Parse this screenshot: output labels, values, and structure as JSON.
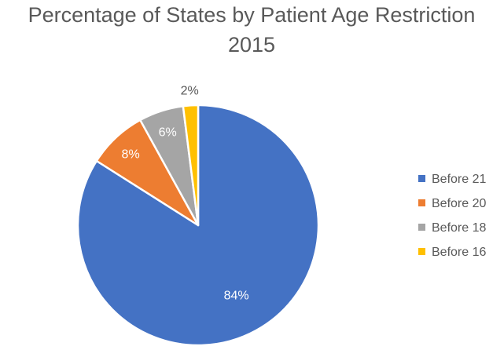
{
  "chart_data": {
    "type": "pie",
    "title": "Percentage of States by Patient Age Restriction",
    "subtitle": "2015",
    "categories": [
      "Before 21",
      "Before 20",
      "Before 18",
      "Before 16"
    ],
    "values": [
      84,
      8,
      6,
      2
    ],
    "data_labels": [
      "84%",
      "8%",
      "6%",
      "2%"
    ],
    "colors": [
      "#4472C4",
      "#ED7D31",
      "#A5A5A5",
      "#FFC000"
    ],
    "legend_position": "right",
    "start_angle": "12 o'clock, clockwise"
  }
}
